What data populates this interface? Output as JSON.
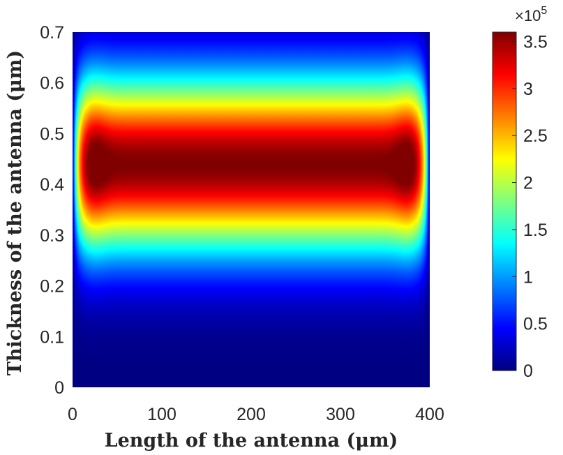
{
  "chart_data": {
    "type": "heatmap",
    "title": "",
    "xlabel": "Length of the antenna (μm)",
    "ylabel": "Thickness of the antenna (μm)",
    "xlim": [
      0,
      400
    ],
    "ylim": [
      0,
      0.7
    ],
    "x_ticks": [
      "0",
      "100",
      "200",
      "300",
      "400"
    ],
    "y_ticks": [
      "0",
      "0.1",
      "0.2",
      "0.3",
      "0.4",
      "0.5",
      "0.6",
      "0.7"
    ],
    "colormap": "jet",
    "data_x_extent": [
      0,
      400
    ],
    "data_y_extent": [
      0,
      0.7
    ],
    "peak_value": 360000,
    "peak_locations": [
      [
        20,
        0.44
      ],
      [
        375,
        0.44
      ]
    ],
    "peak_thickness": 0.44,
    "colorbar": {
      "range": [
        0,
        360000
      ],
      "ticks": [
        "0",
        "0.5",
        "1",
        "1.5",
        "2",
        "2.5",
        "3",
        "3.5"
      ],
      "tick_values": [
        0,
        0.5,
        1,
        1.5,
        2,
        2.5,
        3,
        3.5
      ],
      "exponent_label": "×10",
      "exponent_power": "5"
    },
    "grid": false
  }
}
